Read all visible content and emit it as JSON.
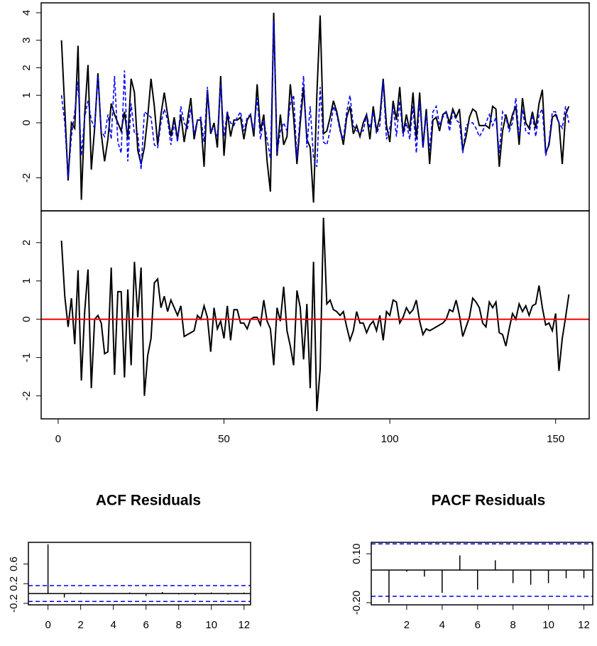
{
  "chart_data": [
    {
      "type": "line",
      "x": [
        1,
        2,
        3,
        4,
        5,
        6,
        7,
        8,
        9,
        10,
        11,
        12,
        13,
        14,
        15,
        16,
        17,
        18,
        19,
        20,
        21,
        22,
        23,
        24,
        25,
        26,
        27,
        28,
        29,
        30,
        31,
        32,
        33,
        34,
        35,
        36,
        37,
        38,
        39,
        40,
        41,
        42,
        43,
        44,
        45,
        46,
        47,
        48,
        49,
        50,
        51,
        52,
        53,
        54,
        55,
        56,
        57,
        58,
        59,
        60,
        61,
        62,
        63,
        64,
        65,
        66,
        67,
        68,
        69,
        70,
        71,
        72,
        73,
        74,
        75,
        76,
        77,
        78,
        79,
        80,
        81,
        82,
        83,
        84,
        85,
        86,
        87,
        88,
        89,
        90,
        91,
        92,
        93,
        94,
        95,
        96,
        97,
        98,
        99,
        100,
        101,
        102,
        103,
        104,
        105,
        106,
        107,
        108,
        109,
        110,
        111,
        112,
        113,
        114,
        115,
        116,
        117,
        118,
        119,
        120,
        121,
        122,
        123,
        124,
        125,
        126,
        127,
        128,
        129,
        130,
        131,
        132,
        133,
        134,
        135,
        136,
        137,
        138,
        139,
        140,
        141,
        142,
        143,
        144,
        145,
        146,
        147,
        148,
        149,
        150,
        151,
        152,
        153,
        154
      ],
      "series": [
        {
          "color": "#000000",
          "dashed": false,
          "values": [
            3.0,
            0.5,
            -2.1,
            0.0,
            -0.2,
            2.8,
            -2.8,
            0.3,
            2.1,
            -1.7,
            -0.2,
            1.8,
            -0.4,
            -1.4,
            -0.6,
            0.7,
            0.3,
            0.0,
            -0.3,
            0.4,
            -0.6,
            1.6,
            1.1,
            -1.0,
            -1.5,
            -0.9,
            0.2,
            1.6,
            0.6,
            -0.8,
            0.3,
            1.1,
            0.3,
            -0.5,
            0.2,
            -0.6,
            0.3,
            -0.7,
            0.1,
            0.9,
            -0.6,
            0.1,
            0.1,
            -1.6,
            1.2,
            -0.4,
            0.0,
            -0.9,
            1.7,
            -1.2,
            0.4,
            -0.5,
            0.1,
            0.1,
            0.2,
            -0.6,
            0.1,
            0.3,
            -0.5,
            1.4,
            -0.3,
            0.3,
            -1.4,
            -2.5,
            4.0,
            -1.2,
            0.3,
            -0.8,
            -0.5,
            1.4,
            0.2,
            -1.5,
            0.0,
            1.3,
            -0.6,
            -0.9,
            -2.9,
            1.0,
            3.9,
            -0.4,
            -0.3,
            0.2,
            0.8,
            0.4,
            -0.2,
            -0.8,
            0.2,
            0.6,
            -0.4,
            -0.1,
            -0.5,
            0.0,
            0.3,
            -0.6,
            0.6,
            -0.3,
            0.2,
            1.6,
            -0.1,
            -0.7,
            0.8,
            0.1,
            1.3,
            -0.4,
            0.3,
            -0.3,
            1.1,
            -0.6,
            1.1,
            -0.9,
            0.5,
            -1.5,
            0.1,
            0.2,
            -0.3,
            0.3,
            0.4,
            0.0,
            0.5,
            0.2,
            0.5,
            -1.0,
            -0.5,
            0.2,
            0.5,
            0.4,
            -0.1,
            -0.1,
            -0.1,
            -0.2,
            0.6,
            0.5,
            -1.6,
            -0.3,
            0.3,
            -0.2,
            0.3,
            0.6,
            -0.8,
            0.9,
            0.0,
            -0.2,
            0.4,
            -0.2,
            0.7,
            1.2,
            -1.1,
            -0.8,
            0.2,
            0.3,
            0.0,
            -1.5,
            0.3,
            0.6
          ]
        },
        {
          "color": "#0000ff",
          "dashed": true,
          "values": [
            1.0,
            0.0,
            -2.0,
            -0.5,
            0.4,
            1.5,
            -1.2,
            0.2,
            0.8,
            0.1,
            -0.2,
            1.7,
            -0.3,
            -0.5,
            0.3,
            -0.6,
            1.7,
            -0.7,
            -1.1,
            1.9,
            -1.4,
            0.7,
            -0.4,
            -0.4,
            -1.7,
            0.4,
            0.3,
            0.2,
            -0.8,
            -0.9,
            0.0,
            0.5,
            0.1,
            -0.8,
            0.0,
            -0.7,
            0.6,
            0.0,
            -0.2,
            0.5,
            -0.4,
            0.1,
            0.2,
            -0.7,
            1.3,
            -0.3,
            -0.2,
            -0.5,
            1.4,
            -0.5,
            0.4,
            0.0,
            -0.1,
            0.2,
            0.4,
            -0.3,
            0.2,
            0.3,
            -0.3,
            0.9,
            -0.6,
            0.1,
            -0.6,
            -1.3,
            3.7,
            -1.1,
            -0.3,
            0.0,
            -0.3,
            0.7,
            1.0,
            -1.3,
            0.3,
            1.7,
            -0.9,
            0.6,
            -1.3,
            -1.6,
            1.3,
            -0.7,
            -0.8,
            -0.3,
            0.6,
            0.3,
            -0.3,
            -0.6,
            0.4,
            1.0,
            -0.1,
            -0.3,
            -0.3,
            -0.3,
            0.3,
            -0.2,
            0.4,
            -0.4,
            -0.1,
            1.5,
            -0.6,
            -0.2,
            0.6,
            -0.5,
            0.8,
            -0.5,
            0.0,
            -0.6,
            0.6,
            -1.1,
            0.8,
            -0.9,
            0.3,
            -1.0,
            0.4,
            0.6,
            -0.1,
            0.2,
            0.4,
            -0.3,
            0.4,
            0.1,
            0.0,
            -1.1,
            -0.1,
            0.0,
            0.0,
            -0.2,
            -0.5,
            -0.3,
            0.0,
            0.3,
            -0.1,
            0.2,
            -1.1,
            0.4,
            0.2,
            -0.3,
            0.0,
            0.9,
            -0.5,
            0.5,
            -0.3,
            -0.4,
            0.3,
            -0.5,
            0.3,
            0.5,
            -1.2,
            -0.7,
            0.4,
            0.4,
            0.0,
            -0.2,
            0.6,
            0.0
          ]
        }
      ],
      "xlim": [
        -5.12,
        160.12
      ],
      "ylim": [
        -3.2,
        4.36
      ],
      "yticks": [
        -2,
        0,
        1,
        2,
        3,
        4
      ]
    },
    {
      "type": "line",
      "x": [
        1,
        2,
        3,
        4,
        5,
        6,
        7,
        8,
        9,
        10,
        11,
        12,
        13,
        14,
        15,
        16,
        17,
        18,
        19,
        20,
        21,
        22,
        23,
        24,
        25,
        26,
        27,
        28,
        29,
        30,
        31,
        32,
        33,
        34,
        35,
        36,
        37,
        38,
        39,
        40,
        41,
        42,
        43,
        44,
        45,
        46,
        47,
        48,
        49,
        50,
        51,
        52,
        53,
        54,
        55,
        56,
        57,
        58,
        59,
        60,
        61,
        62,
        63,
        64,
        65,
        66,
        67,
        68,
        69,
        70,
        71,
        72,
        73,
        74,
        75,
        76,
        77,
        78,
        79,
        80,
        81,
        82,
        83,
        84,
        85,
        86,
        87,
        88,
        89,
        90,
        91,
        92,
        93,
        94,
        95,
        96,
        97,
        98,
        99,
        100,
        101,
        102,
        103,
        104,
        105,
        106,
        107,
        108,
        109,
        110,
        111,
        112,
        113,
        114,
        115,
        116,
        117,
        118,
        119,
        120,
        121,
        122,
        123,
        124,
        125,
        126,
        127,
        128,
        129,
        130,
        131,
        132,
        133,
        134,
        135,
        136,
        137,
        138,
        139,
        140,
        141,
        142,
        143,
        144,
        145,
        146,
        147,
        148,
        149,
        150,
        151,
        152,
        153,
        154
      ],
      "series": [
        {
          "color": "#000000",
          "dashed": false,
          "values": [
            2.05,
            0.6,
            -0.2,
            0.55,
            -0.65,
            1.28,
            -1.6,
            0.2,
            1.3,
            -1.8,
            0,
            0.1,
            -0.1,
            -0.9,
            -0.85,
            1.35,
            -1.45,
            0.72,
            0.72,
            -1.52,
            0.78,
            -1.2,
            1.5,
            0.05,
            1.35,
            -2.0,
            -0.95,
            -0.5,
            0.95,
            1.05,
            0.3,
            0.6,
            0.2,
            0.5,
            0.3,
            0.1,
            0.35,
            -0.45,
            -0.4,
            -0.35,
            -0.3,
            0.1,
            0.0,
            0.35,
            0.05,
            -0.85,
            0.3,
            -0.25,
            -0.05,
            -0.5,
            0.35,
            -0.55,
            0.25,
            0.25,
            -0.1,
            -0.1,
            -0.25,
            0.0,
            0.05,
            0.05,
            -0.15,
            0.5,
            -0.05,
            -0.25,
            -1.2,
            0.3,
            -0.05,
            0.85,
            -0.3,
            -0.7,
            -1.2,
            0.75,
            0.3,
            -1.05,
            0.4,
            -1.8,
            1.5,
            -2.4,
            -1.3,
            2.65,
            0.4,
            0.5,
            0.25,
            0.2,
            0.1,
            0.2,
            -0.2,
            -0.55,
            -0.3,
            0.2,
            -0.1,
            -0.1,
            -0.35,
            -0.15,
            -0.05,
            -0.3,
            0.1,
            -0.55,
            0.2,
            0.1,
            0.5,
            0.45,
            -0.1,
            0.05,
            0.3,
            0.15,
            0.25,
            0.5,
            -0.05,
            -0.4,
            -0.25,
            -0.3,
            -0.25,
            -0.2,
            -0.15,
            -0.1,
            0.0,
            0.25,
            0.2,
            0.5,
            0.1,
            -0.45,
            -0.2,
            0.05,
            0.55,
            0.45,
            0.3,
            -0.1,
            -0.2,
            0.45,
            0.3,
            0.45,
            -0.35,
            -0.4,
            -0.7,
            -0.25,
            0.15,
            0.0,
            0.4,
            0.2,
            0.35,
            0.1,
            0.35,
            0.4,
            0.88,
            0.3,
            -0.15,
            -0.1,
            -0.3,
            0.15,
            -1.35,
            -0.5,
            0.05,
            0.65
          ]
        }
      ],
      "hline": 0,
      "hline_color": "#ff0000",
      "xlim": [
        -5.12,
        160.12
      ],
      "ylim": [
        -2.6,
        2.83
      ],
      "yticks": [
        -2,
        -1,
        0,
        1,
        2
      ],
      "xticks": [
        0,
        50,
        100,
        150
      ]
    },
    {
      "type": "stem",
      "title": "ACF Residuals",
      "x": [
        0,
        1,
        2,
        3,
        4,
        5,
        6,
        7,
        8,
        9,
        10,
        11,
        12
      ],
      "values": [
        1.0,
        -0.08,
        0.02,
        0.0,
        0.01,
        0.02,
        -0.05,
        0.03,
        -0.02,
        -0.03,
        0.02,
        -0.02,
        0.02
      ],
      "ci": [
        0.161,
        -0.161
      ],
      "ci_color": "#0000ff",
      "xlim": [
        -1.2,
        12.4
      ],
      "ylim": [
        -0.23,
        1.04
      ],
      "yticks": [
        -0.2,
        0.2,
        0.6
      ],
      "xticks": [
        0,
        2,
        4,
        6,
        8,
        10,
        12
      ]
    },
    {
      "type": "stem",
      "title": "PACF Residuals",
      "x": [
        1,
        2,
        3,
        4,
        5,
        6,
        7,
        8,
        9,
        10,
        11,
        12
      ],
      "values": [
        -0.2,
        -0.01,
        -0.04,
        -0.14,
        0.09,
        -0.12,
        0.06,
        -0.08,
        -0.09,
        -0.08,
        -0.05,
        -0.05
      ],
      "ci": [
        0.161,
        -0.161
      ],
      "ci_color": "#0000ff",
      "xlim": [
        0,
        12.5
      ],
      "ylim": [
        -0.213,
        0.17
      ],
      "yticks": [
        {
          "value": 0.1,
          "label": "0.10"
        },
        {
          "value": -0.2,
          "label": "-0.20"
        }
      ],
      "xticks": [
        2,
        4,
        6,
        8,
        10,
        12
      ]
    }
  ]
}
